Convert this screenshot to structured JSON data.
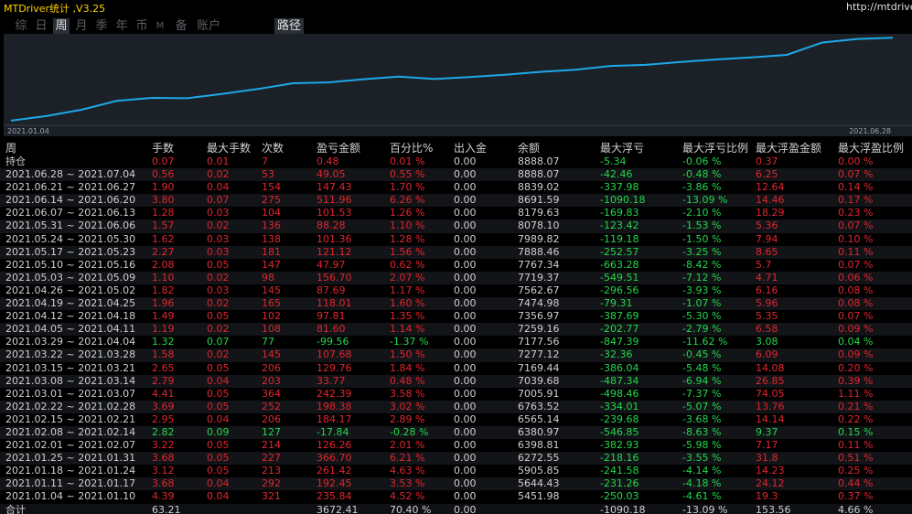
{
  "title": "MTDriver统计 ,V3.25",
  "url": "http://mtdriver.c",
  "tabs": [
    "综",
    "日",
    "周",
    "月",
    "季",
    "年",
    "币",
    "M",
    "备",
    "账户",
    "路径"
  ],
  "active_tab": "周",
  "chart": {
    "x_start_label": "2021.01.04",
    "x_end_label": "2021.06.28",
    "line_color": "#1ea8e8",
    "values": [
      5451.98,
      5644.43,
      5905.85,
      6272.55,
      6398.81,
      6380.97,
      6565.14,
      6763.52,
      7005.91,
      7039.68,
      7169.44,
      7277.12,
      7177.56,
      7259.16,
      7356.97,
      7474.98,
      7562.67,
      7719.37,
      7767.34,
      7888.46,
      7989.82,
      8078.1,
      8179.63,
      8691.59,
      8839.02,
      8888.07
    ]
  },
  "columns": [
    "周",
    "手数",
    "最大手数",
    "次数",
    "盈亏金额",
    "百分比%",
    "出入金",
    "余额",
    "最大浮亏",
    "最大浮亏比例",
    "最大浮盈金额",
    "最大浮盈比例"
  ],
  "holding": {
    "label": "持仓",
    "lots": "0.07",
    "max_lots": "0.01",
    "count": "7",
    "pnl": "0.48",
    "pct": "0.01 %",
    "flow": "0.00",
    "balance": "8888.07",
    "max_dd": "-5.34",
    "max_dd_pct": "-0.06 %",
    "max_fp": "0.37",
    "max_fp_pct": "0.00 %"
  },
  "rows": [
    {
      "week": "2021.06.28 ~ 2021.07.04",
      "lots": "0.56",
      "max_lots": "0.02",
      "count": "53",
      "pnl": "49.05",
      "pct": "0.55 %",
      "flow": "0.00",
      "balance": "8888.07",
      "max_dd": "-42.46",
      "max_dd_pct": "-0.48 %",
      "max_fp": "6.25",
      "max_fp_pct": "0.07 %"
    },
    {
      "week": "2021.06.21 ~ 2021.06.27",
      "lots": "1.90",
      "max_lots": "0.04",
      "count": "154",
      "pnl": "147.43",
      "pct": "1.70 %",
      "flow": "0.00",
      "balance": "8839.02",
      "max_dd": "-337.98",
      "max_dd_pct": "-3.86 %",
      "max_fp": "12.64",
      "max_fp_pct": "0.14 %"
    },
    {
      "week": "2021.06.14 ~ 2021.06.20",
      "lots": "3.80",
      "max_lots": "0.07",
      "count": "275",
      "pnl": "511.96",
      "pct": "6.26 %",
      "flow": "0.00",
      "balance": "8691.59",
      "max_dd": "-1090.18",
      "max_dd_pct": "-13.09 %",
      "max_fp": "14.46",
      "max_fp_pct": "0.17 %"
    },
    {
      "week": "2021.06.07 ~ 2021.06.13",
      "lots": "1.28",
      "max_lots": "0.03",
      "count": "104",
      "pnl": "101.53",
      "pct": "1.26 %",
      "flow": "0.00",
      "balance": "8179.63",
      "max_dd": "-169.83",
      "max_dd_pct": "-2.10 %",
      "max_fp": "18.29",
      "max_fp_pct": "0.23 %"
    },
    {
      "week": "2021.05.31 ~ 2021.06.06",
      "lots": "1.57",
      "max_lots": "0.02",
      "count": "136",
      "pnl": "88.28",
      "pct": "1.10 %",
      "flow": "0.00",
      "balance": "8078.10",
      "max_dd": "-123.42",
      "max_dd_pct": "-1.53 %",
      "max_fp": "5.36",
      "max_fp_pct": "0.07 %"
    },
    {
      "week": "2021.05.24 ~ 2021.05.30",
      "lots": "1.62",
      "max_lots": "0.03",
      "count": "138",
      "pnl": "101.36",
      "pct": "1.28 %",
      "flow": "0.00",
      "balance": "7989.82",
      "max_dd": "-119.18",
      "max_dd_pct": "-1.50 %",
      "max_fp": "7.94",
      "max_fp_pct": "0.10 %"
    },
    {
      "week": "2021.05.17 ~ 2021.05.23",
      "lots": "2.27",
      "max_lots": "0.03",
      "count": "181",
      "pnl": "121.12",
      "pct": "1.56 %",
      "flow": "0.00",
      "balance": "7888.46",
      "max_dd": "-252.57",
      "max_dd_pct": "-3.25 %",
      "max_fp": "8.65",
      "max_fp_pct": "0.11 %"
    },
    {
      "week": "2021.05.10 ~ 2021.05.16",
      "lots": "2.08",
      "max_lots": "0.05",
      "count": "147",
      "pnl": "47.97",
      "pct": "0.62 %",
      "flow": "0.00",
      "balance": "7767.34",
      "max_dd": "-663.28",
      "max_dd_pct": "-8.42 %",
      "max_fp": "5.7",
      "max_fp_pct": "0.07 %"
    },
    {
      "week": "2021.05.03 ~ 2021.05.09",
      "lots": "1.10",
      "max_lots": "0.02",
      "count": "98",
      "pnl": "156.70",
      "pct": "2.07 %",
      "flow": "0.00",
      "balance": "7719.37",
      "max_dd": "-549.51",
      "max_dd_pct": "-7.12 %",
      "max_fp": "4.71",
      "max_fp_pct": "0.06 %"
    },
    {
      "week": "2021.04.26 ~ 2021.05.02",
      "lots": "1.82",
      "max_lots": "0.03",
      "count": "145",
      "pnl": "87.69",
      "pct": "1.17 %",
      "flow": "0.00",
      "balance": "7562.67",
      "max_dd": "-296.56",
      "max_dd_pct": "-3.93 %",
      "max_fp": "6.16",
      "max_fp_pct": "0.08 %"
    },
    {
      "week": "2021.04.19 ~ 2021.04.25",
      "lots": "1.96",
      "max_lots": "0.02",
      "count": "165",
      "pnl": "118.01",
      "pct": "1.60 %",
      "flow": "0.00",
      "balance": "7474.98",
      "max_dd": "-79.31",
      "max_dd_pct": "-1.07 %",
      "max_fp": "5.96",
      "max_fp_pct": "0.08 %"
    },
    {
      "week": "2021.04.12 ~ 2021.04.18",
      "lots": "1.49",
      "max_lots": "0.05",
      "count": "102",
      "pnl": "97.81",
      "pct": "1.35 %",
      "flow": "0.00",
      "balance": "7356.97",
      "max_dd": "-387.69",
      "max_dd_pct": "-5.30 %",
      "max_fp": "5.35",
      "max_fp_pct": "0.07 %"
    },
    {
      "week": "2021.04.05 ~ 2021.04.11",
      "lots": "1.19",
      "max_lots": "0.02",
      "count": "108",
      "pnl": "81.60",
      "pct": "1.14 %",
      "flow": "0.00",
      "balance": "7259.16",
      "max_dd": "-202.77",
      "max_dd_pct": "-2.79 %",
      "max_fp": "6.58",
      "max_fp_pct": "0.09 %"
    },
    {
      "week": "2021.03.29 ~ 2021.04.04",
      "lots": "1.32",
      "max_lots": "0.07",
      "count": "77",
      "pnl": "-99.56",
      "pct": "-1.37 %",
      "flow": "0.00",
      "balance": "7177.56",
      "max_dd": "-847.39",
      "max_dd_pct": "-11.62 %",
      "max_fp": "3.08",
      "max_fp_pct": "0.04 %",
      "loss": true
    },
    {
      "week": "2021.03.22 ~ 2021.03.28",
      "lots": "1.58",
      "max_lots": "0.02",
      "count": "145",
      "pnl": "107.68",
      "pct": "1.50 %",
      "flow": "0.00",
      "balance": "7277.12",
      "max_dd": "-32.36",
      "max_dd_pct": "-0.45 %",
      "max_fp": "6.09",
      "max_fp_pct": "0.09 %"
    },
    {
      "week": "2021.03.15 ~ 2021.03.21",
      "lots": "2.65",
      "max_lots": "0.05",
      "count": "206",
      "pnl": "129.76",
      "pct": "1.84 %",
      "flow": "0.00",
      "balance": "7169.44",
      "max_dd": "-386.04",
      "max_dd_pct": "-5.48 %",
      "max_fp": "14.08",
      "max_fp_pct": "0.20 %"
    },
    {
      "week": "2021.03.08 ~ 2021.03.14",
      "lots": "2.79",
      "max_lots": "0.04",
      "count": "203",
      "pnl": "33.77",
      "pct": "0.48 %",
      "flow": "0.00",
      "balance": "7039.68",
      "max_dd": "-487.34",
      "max_dd_pct": "-6.94 %",
      "max_fp": "26.85",
      "max_fp_pct": "0.39 %"
    },
    {
      "week": "2021.03.01 ~ 2021.03.07",
      "lots": "4.41",
      "max_lots": "0.05",
      "count": "364",
      "pnl": "242.39",
      "pct": "3.58 %",
      "flow": "0.00",
      "balance": "7005.91",
      "max_dd": "-498.46",
      "max_dd_pct": "-7.37 %",
      "max_fp": "74.05",
      "max_fp_pct": "1.11 %"
    },
    {
      "week": "2021.02.22 ~ 2021.02.28",
      "lots": "3.69",
      "max_lots": "0.05",
      "count": "252",
      "pnl": "198.38",
      "pct": "3.02 %",
      "flow": "0.00",
      "balance": "6763.52",
      "max_dd": "-334.01",
      "max_dd_pct": "-5.07 %",
      "max_fp": "13.76",
      "max_fp_pct": "0.21 %"
    },
    {
      "week": "2021.02.15 ~ 2021.02.21",
      "lots": "2.95",
      "max_lots": "0.04",
      "count": "206",
      "pnl": "184.17",
      "pct": "2.89 %",
      "flow": "0.00",
      "balance": "6565.14",
      "max_dd": "-239.68",
      "max_dd_pct": "-3.68 %",
      "max_fp": "14.14",
      "max_fp_pct": "0.22 %"
    },
    {
      "week": "2021.02.08 ~ 2021.02.14",
      "lots": "2.82",
      "max_lots": "0.09",
      "count": "127",
      "pnl": "-17.84",
      "pct": "-0.28 %",
      "flow": "0.00",
      "balance": "6380.97",
      "max_dd": "-546.85",
      "max_dd_pct": "-8.63 %",
      "max_fp": "9.37",
      "max_fp_pct": "0.15 %",
      "loss": true
    },
    {
      "week": "2021.02.01 ~ 2021.02.07",
      "lots": "3.22",
      "max_lots": "0.05",
      "count": "214",
      "pnl": "126.26",
      "pct": "2.01 %",
      "flow": "0.00",
      "balance": "6398.81",
      "max_dd": "-382.93",
      "max_dd_pct": "-5.98 %",
      "max_fp": "7.17",
      "max_fp_pct": "0.11 %"
    },
    {
      "week": "2021.01.25 ~ 2021.01.31",
      "lots": "3.68",
      "max_lots": "0.05",
      "count": "227",
      "pnl": "366.70",
      "pct": "6.21 %",
      "flow": "0.00",
      "balance": "6272.55",
      "max_dd": "-218.16",
      "max_dd_pct": "-3.55 %",
      "max_fp": "31.8",
      "max_fp_pct": "0.51 %"
    },
    {
      "week": "2021.01.18 ~ 2021.01.24",
      "lots": "3.12",
      "max_lots": "0.05",
      "count": "213",
      "pnl": "261.42",
      "pct": "4.63 %",
      "flow": "0.00",
      "balance": "5905.85",
      "max_dd": "-241.58",
      "max_dd_pct": "-4.14 %",
      "max_fp": "14.23",
      "max_fp_pct": "0.25 %"
    },
    {
      "week": "2021.01.11 ~ 2021.01.17",
      "lots": "3.68",
      "max_lots": "0.04",
      "count": "292",
      "pnl": "192.45",
      "pct": "3.53 %",
      "flow": "0.00",
      "balance": "5644.43",
      "max_dd": "-231.26",
      "max_dd_pct": "-4.18 %",
      "max_fp": "24.12",
      "max_fp_pct": "0.44 %"
    },
    {
      "week": "2021.01.04 ~ 2021.01.10",
      "lots": "4.39",
      "max_lots": "0.04",
      "count": "321",
      "pnl": "235.84",
      "pct": "4.52 %",
      "flow": "0.00",
      "balance": "5451.98",
      "max_dd": "-250.03",
      "max_dd_pct": "-4.61 %",
      "max_fp": "19.3",
      "max_fp_pct": "0.37 %"
    }
  ],
  "total": {
    "label": "合计",
    "lots": "63.21",
    "max_lots": "",
    "count": "",
    "pnl": "3672.41",
    "pct": "70.40 %",
    "flow": "0.00",
    "balance": "",
    "max_dd": "-1090.18",
    "max_dd_pct": "-13.09 %",
    "max_fp": "153.56",
    "max_fp_pct": "4.66 %"
  }
}
